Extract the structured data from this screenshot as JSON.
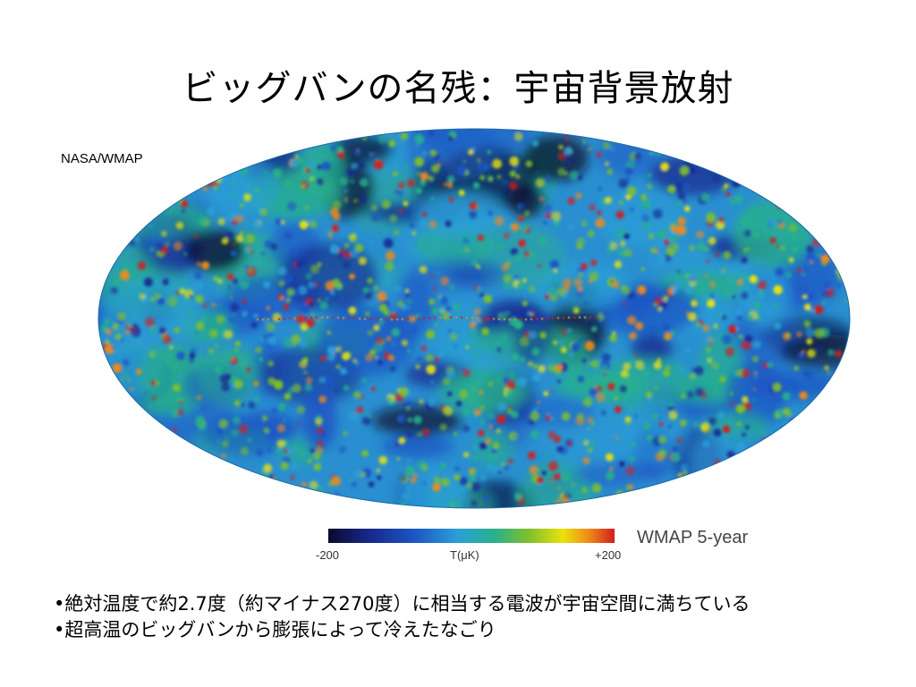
{
  "slide": {
    "title": "ビッグバンの名残：宇宙背景放射",
    "credit": "NASA/WMAP"
  },
  "map": {
    "colorbar": {
      "min_label": "-200",
      "mid_label": "T(μK)",
      "max_label": "+200"
    },
    "dataset_label": "WMAP 5-year",
    "colors": {
      "deep": "#0a0a2e",
      "dark_blue": "#172a8f",
      "blue": "#1d55c4",
      "cyan": "#2b9fd6",
      "green": "#27b08c",
      "lime": "#7fc02c",
      "yellow": "#e9e20c",
      "orange": "#f08a1c",
      "red": "#d21f1f"
    }
  },
  "bullets": [
    "•絶対温度で約2.7度（約マイナス270度）に相当する電波が宇宙空間に満ちている",
    "•超高温のビッグバンから膨張によって冷えたなごり"
  ]
}
